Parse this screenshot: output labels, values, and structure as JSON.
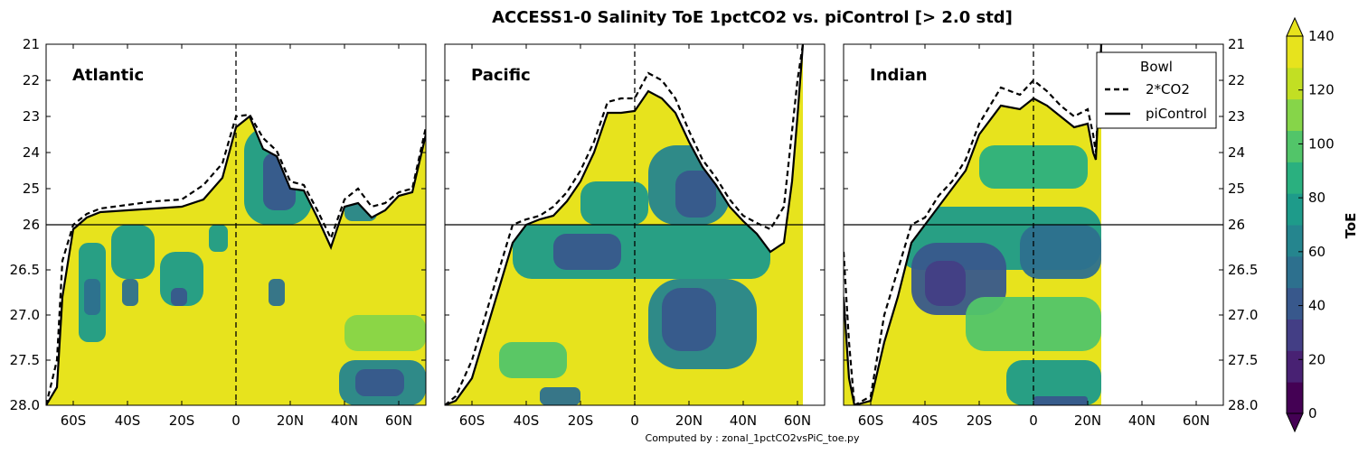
{
  "title": "ACCESS1-0 Salinity ToE 1pctCO2 vs. piControl [> 2.0 std]",
  "footer": "Computed by : zonal_1pctCO2vsPiC_toe.py",
  "colors": {
    "viridis": [
      "#440154",
      "#482173",
      "#433e85",
      "#38588c",
      "#2d708e",
      "#25858e",
      "#1e9b8a",
      "#2ab07f",
      "#52c569",
      "#86d549",
      "#c2df23",
      "#e7e31d"
    ],
    "sat_color": "#e7e31d",
    "line_color": "#000000"
  },
  "chart_data": {
    "type": "heatmap",
    "title": "ACCESS1-0 Salinity ToE 1pctCO2 vs. piControl [> 2.0 std]",
    "xlim": [
      -70,
      70
    ],
    "x_ticks": [
      -60,
      -40,
      -20,
      0,
      20,
      40,
      60
    ],
    "x_tick_labels": [
      "60S",
      "40S",
      "20S",
      "0",
      "20N",
      "40N",
      "60N"
    ],
    "y_ticks": [
      21,
      22,
      23,
      24,
      25,
      26,
      26.5,
      27.0,
      27.5,
      28.0
    ],
    "y_tick_labels": [
      "21",
      "22",
      "23",
      "24",
      "25",
      "26",
      "26.5",
      "27.0",
      "27.5",
      "28.0"
    ],
    "y_split": 26,
    "y_direction": "downward",
    "legend": {
      "title": "Bowl",
      "entries": [
        "2*CO2",
        "piControl"
      ],
      "placement": "top-right of Indian panel"
    },
    "colorbar": {
      "label": "ToE",
      "ticks": [
        0,
        20,
        40,
        60,
        80,
        100,
        120,
        140
      ],
      "levels": [
        0,
        140
      ],
      "extend": "both"
    },
    "panels": [
      {
        "name": "Atlantic",
        "bowl_2co2": [
          [
            -70,
            28.0
          ],
          [
            -66,
            27.5
          ],
          [
            -64,
            26.4
          ],
          [
            -60,
            26.0
          ],
          [
            -55,
            25.7
          ],
          [
            -50,
            25.55
          ],
          [
            -40,
            25.45
          ],
          [
            -30,
            25.35
          ],
          [
            -20,
            25.3
          ],
          [
            -12,
            24.9
          ],
          [
            -5,
            24.3
          ],
          [
            0,
            23.0
          ],
          [
            5,
            22.95
          ],
          [
            10,
            23.6
          ],
          [
            15,
            23.95
          ],
          [
            20,
            24.8
          ],
          [
            25,
            24.9
          ],
          [
            30,
            25.6
          ],
          [
            35,
            26.15
          ],
          [
            40,
            25.3
          ],
          [
            45,
            25.0
          ],
          [
            50,
            25.5
          ],
          [
            55,
            25.4
          ],
          [
            60,
            25.1
          ],
          [
            65,
            25.0
          ],
          [
            70,
            23.3
          ]
        ],
        "bowl_picontrol": [
          [
            -70,
            28.0
          ],
          [
            -66,
            27.8
          ],
          [
            -64,
            26.8
          ],
          [
            -60,
            26.05
          ],
          [
            -55,
            25.8
          ],
          [
            -50,
            25.65
          ],
          [
            -40,
            25.6
          ],
          [
            -30,
            25.55
          ],
          [
            -20,
            25.5
          ],
          [
            -12,
            25.3
          ],
          [
            -5,
            24.7
          ],
          [
            0,
            23.3
          ],
          [
            5,
            23.0
          ],
          [
            10,
            23.9
          ],
          [
            15,
            24.1
          ],
          [
            20,
            25.0
          ],
          [
            25,
            25.05
          ],
          [
            30,
            25.8
          ],
          [
            35,
            26.25
          ],
          [
            40,
            25.5
          ],
          [
            45,
            25.4
          ],
          [
            50,
            25.8
          ],
          [
            55,
            25.6
          ],
          [
            60,
            25.2
          ],
          [
            65,
            25.1
          ],
          [
            70,
            23.5
          ]
        ],
        "toe_cells": [
          {
            "lat": [
              -70,
              70
            ],
            "rho": [
              21,
              28
            ],
            "toe": 140
          },
          {
            "lat": [
              -58,
              -48
            ],
            "rho": [
              26.2,
              27.3
            ],
            "toe": 75
          },
          {
            "lat": [
              -56,
              -50
            ],
            "rho": [
              26.6,
              27.0
            ],
            "toe": 55
          },
          {
            "lat": [
              -46,
              -30
            ],
            "rho": [
              26.0,
              26.6
            ],
            "toe": 75
          },
          {
            "lat": [
              -42,
              -36
            ],
            "rho": [
              26.6,
              26.9
            ],
            "toe": 50
          },
          {
            "lat": [
              -28,
              -12
            ],
            "rho": [
              26.3,
              26.9
            ],
            "toe": 70
          },
          {
            "lat": [
              -24,
              -18
            ],
            "rho": [
              26.7,
              26.9
            ],
            "toe": 45
          },
          {
            "lat": [
              -10,
              -3
            ],
            "rho": [
              26.0,
              26.3
            ],
            "toe": 80
          },
          {
            "lat": [
              3,
              28
            ],
            "rho": [
              23.3,
              26.0
            ],
            "toe": 70
          },
          {
            "lat": [
              10,
              22
            ],
            "rho": [
              24.0,
              25.6
            ],
            "toe": 45
          },
          {
            "lat": [
              12,
              18
            ],
            "rho": [
              26.6,
              26.9
            ],
            "toe": 55
          },
          {
            "lat": [
              38,
              70
            ],
            "rho": [
              27.5,
              28.0
            ],
            "toe": 60
          },
          {
            "lat": [
              44,
              62
            ],
            "rho": [
              27.6,
              27.9
            ],
            "toe": 35
          },
          {
            "lat": [
              40,
              52
            ],
            "rho": [
              25.3,
              25.9
            ],
            "toe": 60
          },
          {
            "lat": [
              40,
              70
            ],
            "rho": [
              27.0,
              27.4
            ],
            "toe": 110
          }
        ]
      },
      {
        "name": "Pacific",
        "bowl_2co2": [
          [
            -70,
            28.0
          ],
          [
            -66,
            27.9
          ],
          [
            -60,
            27.5
          ],
          [
            -55,
            27.0
          ],
          [
            -50,
            26.5
          ],
          [
            -45,
            26.0
          ],
          [
            -40,
            25.85
          ],
          [
            -35,
            25.75
          ],
          [
            -30,
            25.5
          ],
          [
            -25,
            25.1
          ],
          [
            -20,
            24.5
          ],
          [
            -15,
            23.7
          ],
          [
            -10,
            22.6
          ],
          [
            -5,
            22.5
          ],
          [
            0,
            22.5
          ],
          [
            5,
            21.8
          ],
          [
            10,
            22.0
          ],
          [
            15,
            22.5
          ],
          [
            20,
            23.4
          ],
          [
            25,
            24.2
          ],
          [
            30,
            24.7
          ],
          [
            35,
            25.3
          ],
          [
            40,
            25.75
          ],
          [
            45,
            25.95
          ],
          [
            50,
            26.05
          ],
          [
            55,
            25.5
          ],
          [
            60,
            22.0
          ],
          [
            62,
            21.0
          ]
        ],
        "bowl_picontrol": [
          [
            -70,
            28.0
          ],
          [
            -66,
            27.95
          ],
          [
            -60,
            27.7
          ],
          [
            -55,
            27.2
          ],
          [
            -50,
            26.7
          ],
          [
            -45,
            26.2
          ],
          [
            -40,
            26.0
          ],
          [
            -35,
            25.85
          ],
          [
            -30,
            25.75
          ],
          [
            -25,
            25.35
          ],
          [
            -20,
            24.8
          ],
          [
            -15,
            24.0
          ],
          [
            -10,
            22.9
          ],
          [
            -5,
            22.9
          ],
          [
            0,
            22.85
          ],
          [
            5,
            22.3
          ],
          [
            10,
            22.5
          ],
          [
            15,
            22.9
          ],
          [
            20,
            23.7
          ],
          [
            25,
            24.4
          ],
          [
            30,
            24.9
          ],
          [
            35,
            25.5
          ],
          [
            40,
            25.9
          ],
          [
            45,
            26.1
          ],
          [
            50,
            26.3
          ],
          [
            55,
            26.2
          ],
          [
            58,
            24.8
          ],
          [
            60,
            23.0
          ],
          [
            62,
            21.0
          ]
        ],
        "toe_cells": [
          {
            "lat": [
              -70,
              62
            ],
            "rho": [
              21,
              28
            ],
            "toe": 140
          },
          {
            "lat": [
              -20,
              5
            ],
            "rho": [
              24.8,
              26.0
            ],
            "toe": 70
          },
          {
            "lat": [
              5,
              35
            ],
            "rho": [
              23.8,
              26.0
            ],
            "toe": 60
          },
          {
            "lat": [
              15,
              30
            ],
            "rho": [
              24.5,
              25.8
            ],
            "toe": 40
          },
          {
            "lat": [
              -45,
              50
            ],
            "rho": [
              26.0,
              26.6
            ],
            "toe": 70
          },
          {
            "lat": [
              -30,
              -5
            ],
            "rho": [
              26.1,
              26.5
            ],
            "toe": 45
          },
          {
            "lat": [
              5,
              45
            ],
            "rho": [
              26.6,
              27.6
            ],
            "toe": 60
          },
          {
            "lat": [
              10,
              30
            ],
            "rho": [
              26.7,
              27.4
            ],
            "toe": 40
          },
          {
            "lat": [
              -50,
              -25
            ],
            "rho": [
              27.3,
              27.7
            ],
            "toe": 100
          },
          {
            "lat": [
              -35,
              -20
            ],
            "rho": [
              27.8,
              28.0
            ],
            "toe": 50
          }
        ]
      },
      {
        "name": "Indian",
        "bowl_2co2": [
          [
            -70,
            26.3
          ],
          [
            -68,
            27.3
          ],
          [
            -66,
            28.0
          ],
          [
            -60,
            27.9
          ],
          [
            -55,
            27.0
          ],
          [
            -50,
            26.5
          ],
          [
            -45,
            26.0
          ],
          [
            -40,
            25.8
          ],
          [
            -35,
            25.2
          ],
          [
            -30,
            24.8
          ],
          [
            -25,
            24.2
          ],
          [
            -20,
            23.2
          ],
          [
            -12,
            22.2
          ],
          [
            -5,
            22.4
          ],
          [
            0,
            22.0
          ],
          [
            5,
            22.3
          ],
          [
            10,
            22.7
          ],
          [
            15,
            23.0
          ],
          [
            20,
            22.8
          ],
          [
            22,
            23.5
          ],
          [
            23,
            24.0
          ],
          [
            25,
            21.0
          ]
        ],
        "bowl_picontrol": [
          [
            -70,
            26.8
          ],
          [
            -68,
            27.7
          ],
          [
            -66,
            28.0
          ],
          [
            -60,
            27.95
          ],
          [
            -55,
            27.3
          ],
          [
            -50,
            26.8
          ],
          [
            -45,
            26.2
          ],
          [
            -40,
            26.0
          ],
          [
            -35,
            25.5
          ],
          [
            -30,
            25.0
          ],
          [
            -25,
            24.5
          ],
          [
            -20,
            23.5
          ],
          [
            -12,
            22.7
          ],
          [
            -5,
            22.8
          ],
          [
            0,
            22.5
          ],
          [
            5,
            22.7
          ],
          [
            10,
            23.0
          ],
          [
            15,
            23.3
          ],
          [
            20,
            23.2
          ],
          [
            22,
            24.0
          ],
          [
            23,
            24.2
          ],
          [
            25,
            21.0
          ]
        ],
        "toe_cells": [
          {
            "lat": [
              -70,
              25
            ],
            "rho": [
              21,
              28
            ],
            "toe": 140
          },
          {
            "lat": [
              -50,
              25
            ],
            "rho": [
              25.5,
              26.5
            ],
            "toe": 80
          },
          {
            "lat": [
              -45,
              -10
            ],
            "rho": [
              26.2,
              27.0
            ],
            "toe": 40
          },
          {
            "lat": [
              -40,
              -25
            ],
            "rho": [
              26.4,
              26.9
            ],
            "toe": 25
          },
          {
            "lat": [
              -5,
              25
            ],
            "rho": [
              26.0,
              26.6
            ],
            "toe": 55
          },
          {
            "lat": [
              -20,
              20
            ],
            "rho": [
              23.8,
              25.0
            ],
            "toe": 90
          },
          {
            "lat": [
              -25,
              25
            ],
            "rho": [
              26.8,
              27.4
            ],
            "toe": 100
          },
          {
            "lat": [
              -10,
              25
            ],
            "rho": [
              27.5,
              28.0
            ],
            "toe": 70
          },
          {
            "lat": [
              0,
              20
            ],
            "rho": [
              27.9,
              28.0
            ],
            "toe": 40
          }
        ]
      }
    ]
  }
}
